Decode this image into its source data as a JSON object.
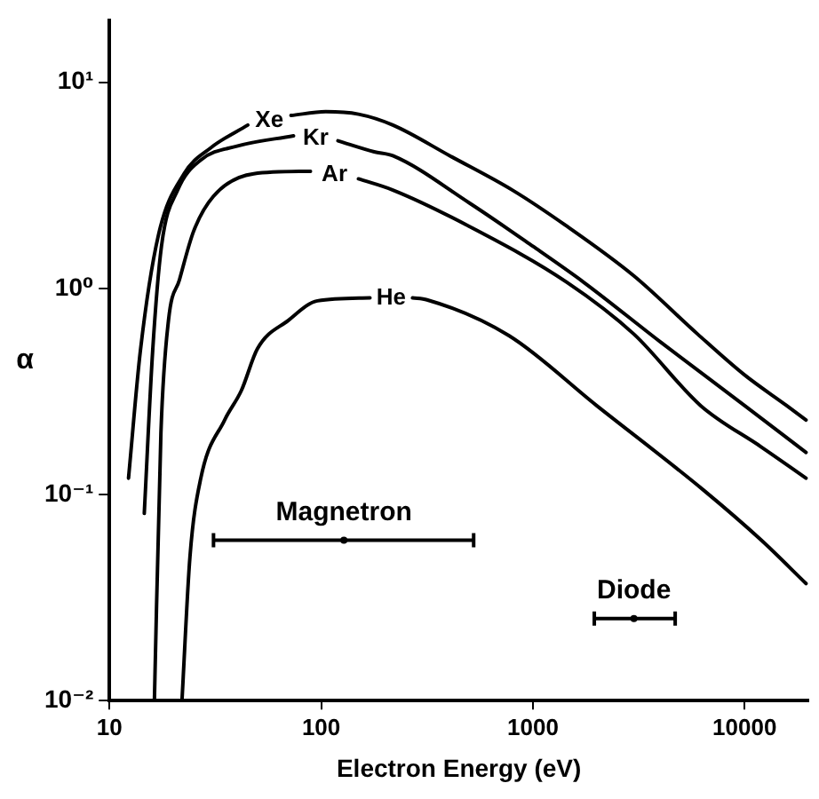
{
  "chart_data": {
    "type": "line",
    "xlabel": "Electron Energy (eV)",
    "ylabel": "α",
    "log": "xy",
    "xlim": [
      10,
      20000
    ],
    "ylim": [
      0.01,
      20
    ],
    "xticks": [
      10,
      100,
      1000,
      10000
    ],
    "yticks": [
      {
        "value": 0.01,
        "label": "10⁻²"
      },
      {
        "value": 0.1,
        "label": "10⁻¹"
      },
      {
        "value": 1,
        "label": "10⁰"
      },
      {
        "value": 10,
        "label": "10¹"
      }
    ],
    "grid": false,
    "legend": false,
    "marker": "none",
    "series": [
      {
        "name": "Xe",
        "color": "#000000",
        "x": [
          12.3,
          14,
          17,
          22.5,
          30,
          45,
          55,
          72,
          105,
          150,
          218,
          405,
          800,
          1450,
          3000,
          6000,
          10000,
          15800,
          19500
        ],
        "values": [
          0.12,
          0.5,
          1.8,
          3.6,
          4.8,
          6.2,
          null,
          6.9,
          7.2,
          7.0,
          6.2,
          4.4,
          3.0,
          2.0,
          1.15,
          0.6,
          0.38,
          0.27,
          0.23
        ]
      },
      {
        "name": "Kr",
        "color": "#000000",
        "x": [
          14.6,
          16,
          17.6,
          21,
          27,
          40,
          74,
          95,
          120,
          178,
          218,
          500,
          1000,
          1740,
          4000,
          10000,
          19500
        ],
        "values": [
          0.081,
          0.5,
          1.6,
          3.0,
          4.2,
          4.9,
          5.5,
          null,
          5.2,
          4.6,
          4.4,
          2.6,
          1.6,
          1.07,
          0.55,
          0.27,
          0.16
        ]
      },
      {
        "name": "Ar",
        "color": "#000000",
        "x": [
          16.3,
          17.5,
          19,
          21.4,
          25,
          31,
          48,
          89,
          115,
          150,
          218,
          500,
          1450,
          3000,
          6200,
          12000,
          19500
        ],
        "values": [
          0.01,
          0.2,
          0.7,
          1.1,
          1.9,
          2.8,
          3.6,
          3.7,
          null,
          3.4,
          3.0,
          2.0,
          1.07,
          0.6,
          0.27,
          0.17,
          0.12
        ]
      },
      {
        "name": "He",
        "color": "#000000",
        "x": [
          22,
          24,
          27,
          35,
          42,
          50,
          70,
          96,
          170,
          215,
          270,
          316,
          770,
          2000,
          6400,
          12000,
          19500
        ],
        "values": [
          0.01,
          0.05,
          0.12,
          0.23,
          0.32,
          0.51,
          0.7,
          0.87,
          0.9,
          null,
          0.9,
          0.88,
          0.59,
          0.27,
          0.105,
          0.06,
          0.037
        ]
      },
      {
        "name": "Magnetron",
        "type": "scatter",
        "marker": "circle",
        "color": "#000000",
        "x": [
          128
        ],
        "values": [
          0.06
        ],
        "xerrors": [
          [
            31,
            525
          ]
        ]
      },
      {
        "name": "Diode",
        "type": "scatter",
        "marker": "circle",
        "color": "#000000",
        "x": [
          3000
        ],
        "values": [
          0.025
        ],
        "xerrors": [
          [
            1950,
            4700
          ]
        ]
      }
    ]
  }
}
